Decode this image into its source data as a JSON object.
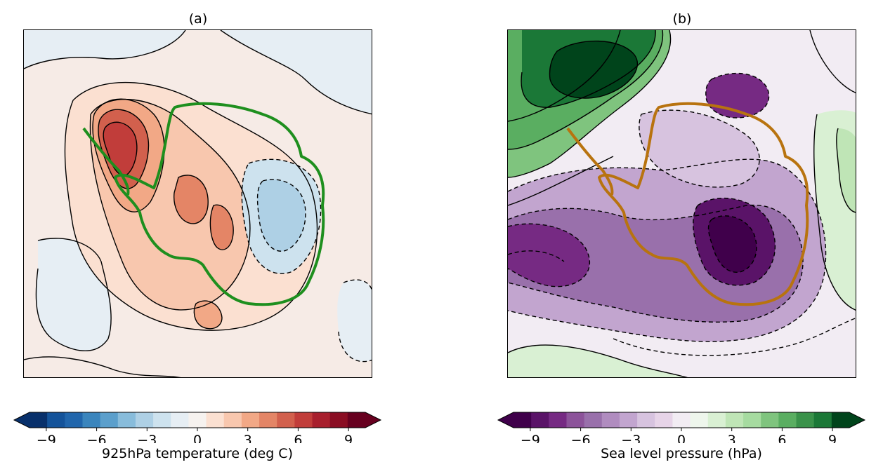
{
  "panels": [
    {
      "id": "a",
      "title": "(a)",
      "colorbar": {
        "label": "925hPa temperature (deg C)",
        "ticks": [
          "−9",
          "−6",
          "−3",
          "0",
          "3",
          "6",
          "9"
        ],
        "tick_values": [
          -9,
          -6,
          -3,
          0,
          3,
          6,
          9
        ],
        "range": [
          -10,
          10
        ],
        "colormap": "RdBu_r",
        "extend": "both",
        "colors": [
          "#08306b",
          "#14539a",
          "#2166ac",
          "#3a85bd",
          "#5b9fcc",
          "#88bcdb",
          "#aed0e5",
          "#cde2ee",
          "#e6eef4",
          "#f6f2ef",
          "#fbe0d1",
          "#f8c7ae",
          "#f2a886",
          "#e48566",
          "#d2604d",
          "#c13d3a",
          "#a81f2d",
          "#8a0d23",
          "#67001f"
        ]
      },
      "coastline_color": "#1e8f1e",
      "temperature_anomaly_features": [
        {
          "kind": "warm maximum",
          "value": 9
        },
        {
          "kind": "warm",
          "value": 5
        },
        {
          "kind": "cold",
          "value": -3
        }
      ]
    },
    {
      "id": "b",
      "title": "(b)",
      "colorbar": {
        "label": "Sea level pressure (hPa)",
        "ticks": [
          "−9",
          "−6",
          "−3",
          "0",
          "3",
          "6",
          "9"
        ],
        "tick_values": [
          -9,
          -6,
          -3,
          0,
          3,
          6,
          9
        ],
        "range": [
          -10,
          10
        ],
        "colormap": "PRGn",
        "extend": "both",
        "colors": [
          "#40004b",
          "#5a1368",
          "#762a83",
          "#8c539a",
          "#9970ab",
          "#b08cbf",
          "#c2a5cf",
          "#d7c3df",
          "#e7d4e8",
          "#f2ecf3",
          "#eef6ec",
          "#d9f0d3",
          "#bfe5b6",
          "#a6dba0",
          "#7fc47e",
          "#5aae61",
          "#3a924a",
          "#1b7837",
          "#00441b"
        ]
      },
      "coastline_color": "#b8730f",
      "pressure_anomaly_features": [
        {
          "kind": "high maximum",
          "value": 10
        },
        {
          "kind": "low minimum",
          "value": -10
        }
      ]
    }
  ]
}
